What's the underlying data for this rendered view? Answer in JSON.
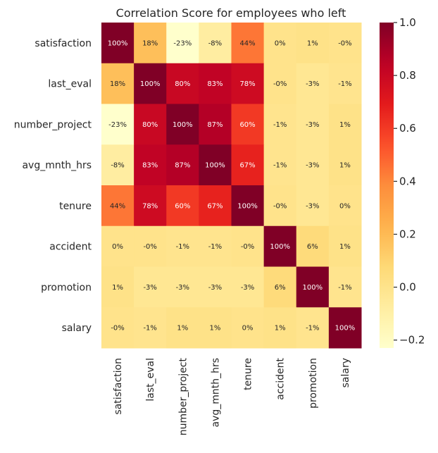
{
  "chart_data": {
    "type": "heatmap",
    "title": "Correlation Score for employees who left",
    "xlabel": "",
    "ylabel": "",
    "x_categories": [
      "satisfaction",
      "last_eval",
      "number_project",
      "avg_mnth_hrs",
      "tenure",
      "accident",
      "promotion",
      "salary"
    ],
    "y_categories": [
      "satisfaction",
      "last_eval",
      "number_project",
      "avg_mnth_hrs",
      "tenure",
      "accident",
      "promotion",
      "salary"
    ],
    "values": [
      [
        1.0,
        0.18,
        -0.23,
        -0.08,
        0.44,
        0.0,
        0.01,
        -0.0
      ],
      [
        0.18,
        1.0,
        0.8,
        0.83,
        0.78,
        -0.0,
        -0.03,
        -0.01
      ],
      [
        -0.23,
        0.8,
        1.0,
        0.87,
        0.6,
        -0.01,
        -0.03,
        0.01
      ],
      [
        -0.08,
        0.83,
        0.87,
        1.0,
        0.67,
        -0.01,
        -0.03,
        0.01
      ],
      [
        0.44,
        0.78,
        0.6,
        0.67,
        1.0,
        -0.0,
        -0.03,
        0.0
      ],
      [
        0.0,
        -0.0,
        -0.01,
        -0.01,
        -0.0,
        1.0,
        0.06,
        0.01
      ],
      [
        0.01,
        -0.03,
        -0.03,
        -0.03,
        -0.03,
        0.06,
        1.0,
        -0.01
      ],
      [
        -0.0,
        -0.01,
        0.01,
        0.01,
        0.0,
        0.01,
        -0.01,
        1.0
      ]
    ],
    "annotations": [
      [
        "100%",
        "18%",
        "-23%",
        "-8%",
        "44%",
        "0%",
        "1%",
        "-0%"
      ],
      [
        "18%",
        "100%",
        "80%",
        "83%",
        "78%",
        "-0%",
        "-3%",
        "-1%"
      ],
      [
        "-23%",
        "80%",
        "100%",
        "87%",
        "60%",
        "-1%",
        "-3%",
        "1%"
      ],
      [
        "-8%",
        "83%",
        "87%",
        "100%",
        "67%",
        "-1%",
        "-3%",
        "1%"
      ],
      [
        "44%",
        "78%",
        "60%",
        "67%",
        "100%",
        "-0%",
        "-3%",
        "0%"
      ],
      [
        "0%",
        "-0%",
        "-1%",
        "-1%",
        "-0%",
        "100%",
        "6%",
        "1%"
      ],
      [
        "1%",
        "-3%",
        "-3%",
        "-3%",
        "-3%",
        "6%",
        "100%",
        "-1%"
      ],
      [
        "-0%",
        "-1%",
        "1%",
        "1%",
        "0%",
        "1%",
        "-1%",
        "100%"
      ]
    ],
    "colormap": "YlOrRd",
    "vmin": -0.23,
    "vmax": 1.0,
    "colorbar": {
      "ticks": [
        1.0,
        0.8,
        0.6,
        0.4,
        0.2,
        0.0,
        -0.2
      ],
      "tick_labels": [
        "1.0",
        "0.8",
        "0.6",
        "0.4",
        "0.2",
        "0.0",
        "−0.2"
      ],
      "placement": "right"
    },
    "grid": false,
    "legend": "none"
  }
}
